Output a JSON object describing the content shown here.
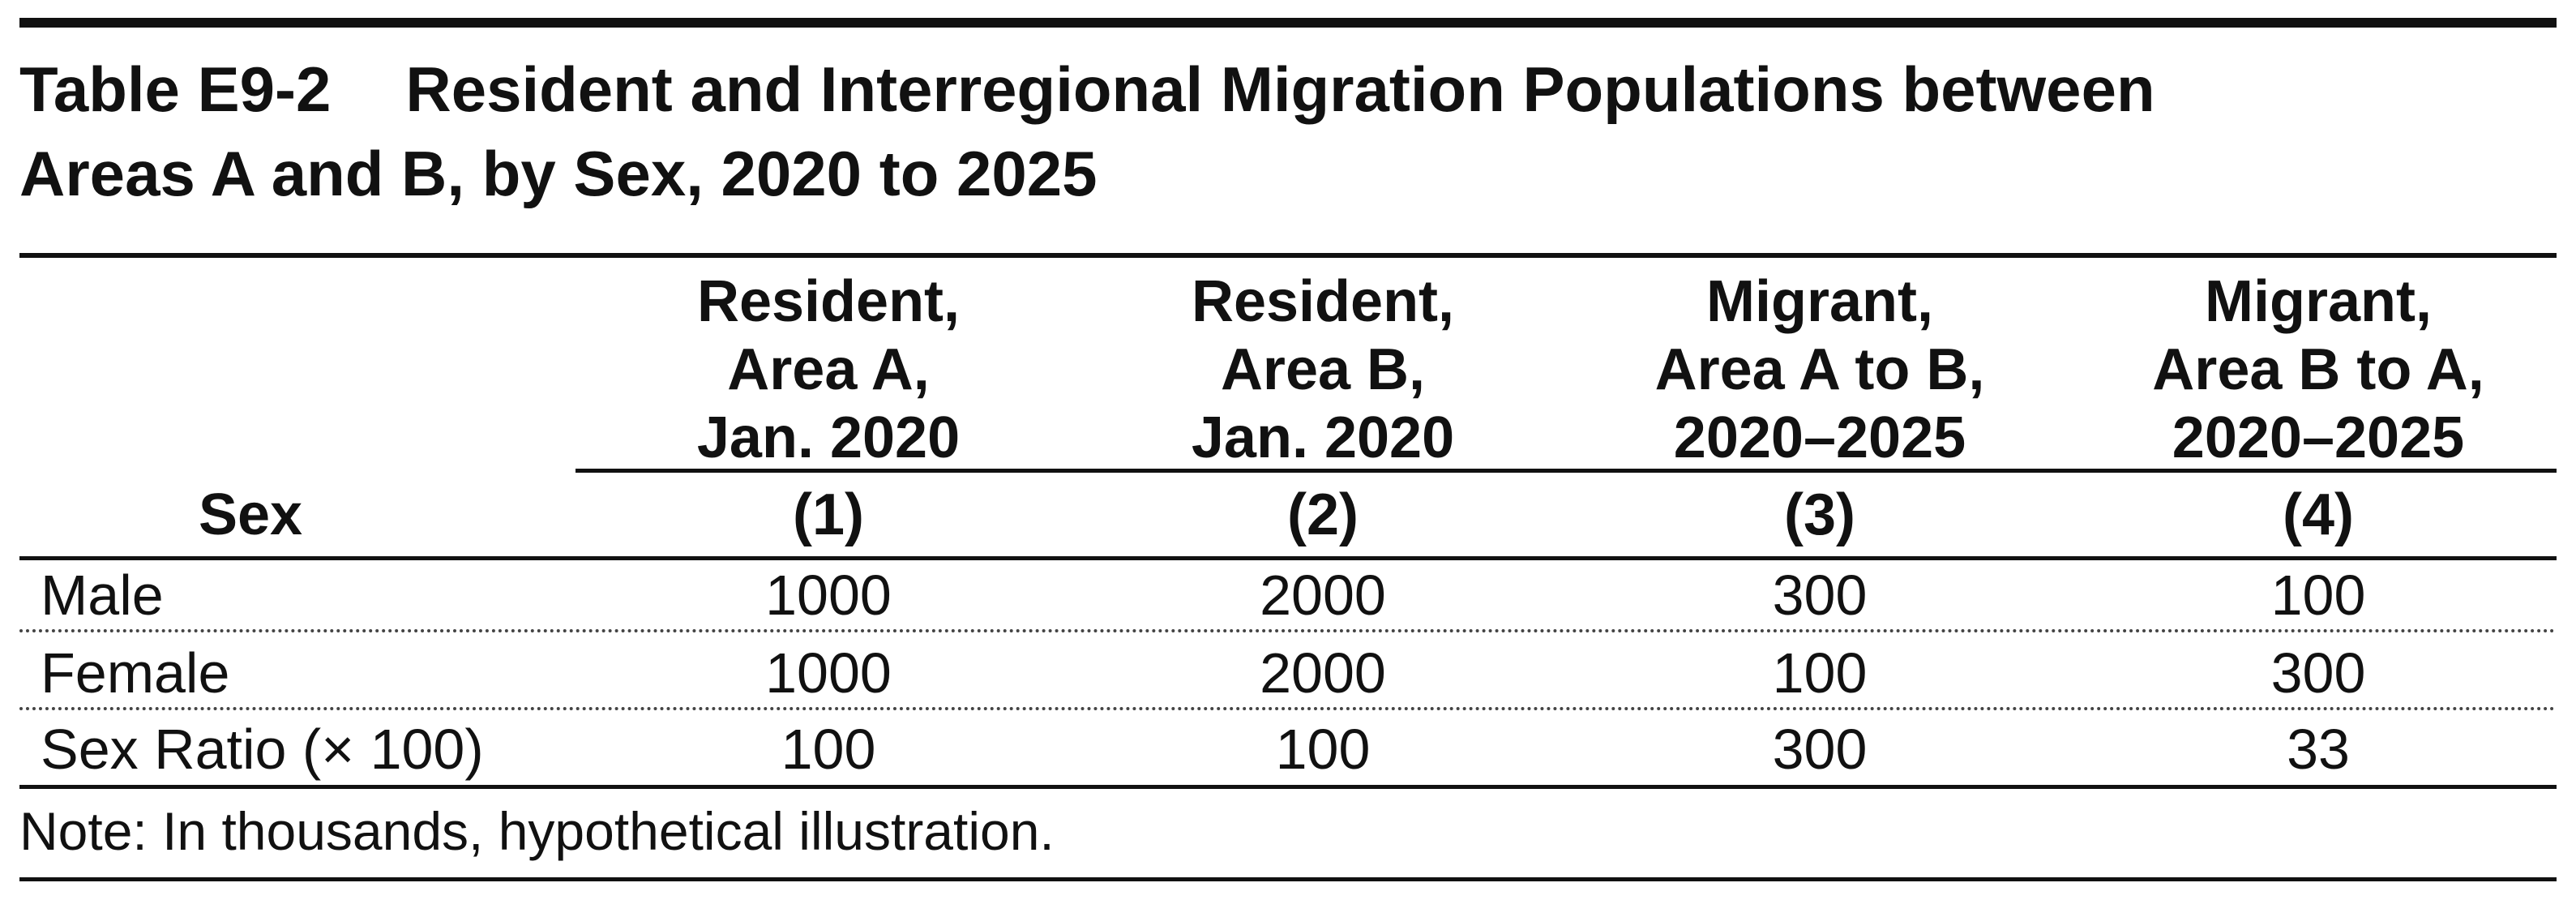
{
  "table": {
    "number": "Table E9-2",
    "title_line1": "Resident and Interregional Migration Populations between",
    "title_line2": "Areas A and B, by Sex, 2020 to 2025",
    "stub_header": "Sex",
    "columns": [
      {
        "lines": [
          "Resident,",
          "Area A,",
          "Jan. 2020"
        ],
        "number": "(1)"
      },
      {
        "lines": [
          "Resident,",
          "Area B,",
          "Jan. 2020"
        ],
        "number": "(2)"
      },
      {
        "lines": [
          "Migrant,",
          "Area A to B,",
          "2020–2025"
        ],
        "number": "(3)"
      },
      {
        "lines": [
          "Migrant,",
          "Area B to A,",
          "2020–2025"
        ],
        "number": "(4)"
      }
    ],
    "rows": [
      {
        "label": "Male",
        "values": [
          "1000",
          "2000",
          "300",
          "100"
        ]
      },
      {
        "label": "Female",
        "values": [
          "1000",
          "2000",
          "100",
          "300"
        ]
      },
      {
        "label": "Sex Ratio (× 100)",
        "values": [
          "100",
          "100",
          "300",
          "33"
        ]
      }
    ],
    "note": "Note: In thousands, hypothetical illustration."
  }
}
